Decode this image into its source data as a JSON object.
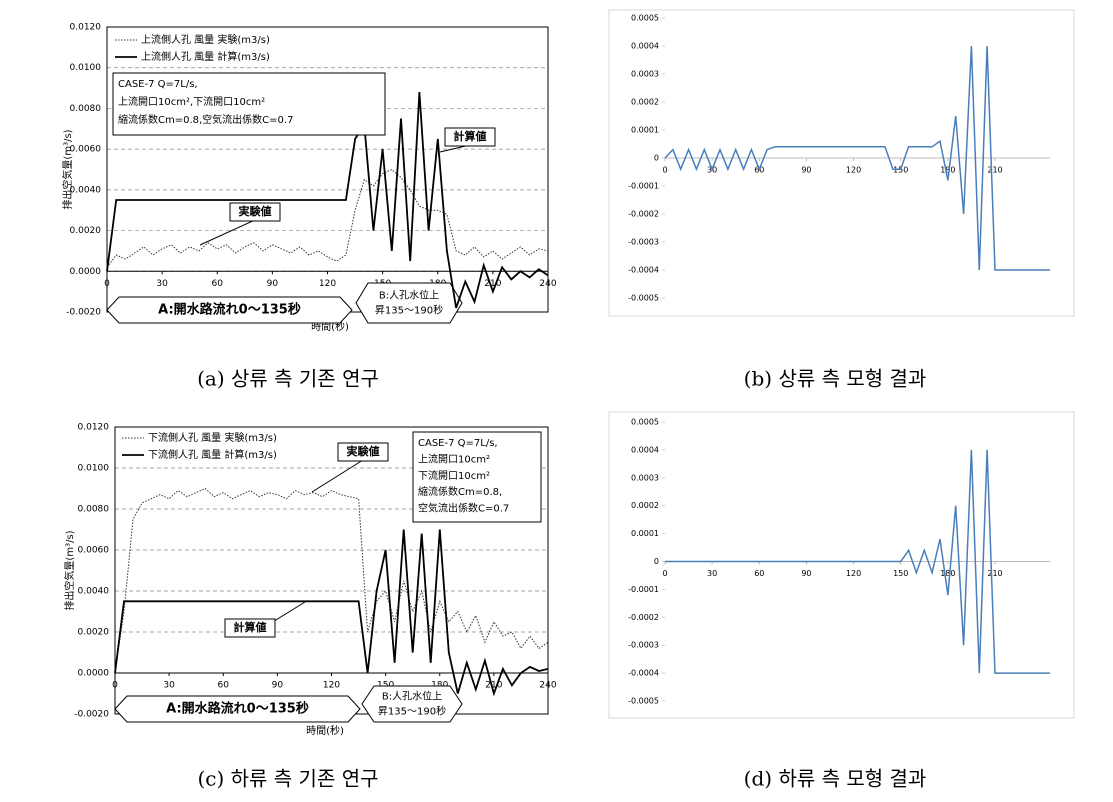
{
  "chart_data": [
    {
      "type": "line",
      "caption": "(a) 상류 측 기존 연구",
      "xlabel": "時間(秒)",
      "ylabel": "排出空気量(m³/s)",
      "style": "paper",
      "grid": true,
      "xlim": [
        0,
        240
      ],
      "xticks": [
        0,
        30,
        60,
        90,
        120,
        150,
        180,
        210,
        240
      ],
      "ylim": [
        -0.002,
        0.012
      ],
      "yticks": [
        {
          "value": -0.002,
          "label": "-0.0020"
        },
        {
          "value": 0,
          "label": "0.0000"
        },
        {
          "value": 0.002,
          "label": "0.0020"
        },
        {
          "value": 0.004,
          "label": "0.0040"
        },
        {
          "value": 0.006,
          "label": "0.0060"
        },
        {
          "value": 0.008,
          "label": "0.0080"
        },
        {
          "value": 0.01,
          "label": "0.0100"
        },
        {
          "value": 0.012,
          "label": "0.0120"
        }
      ],
      "annotation_box": [
        "CASE-7 Q=7L/s,",
        "上流開口10cm²,下流開口10cm²",
        "縮流係数Cm=0.8,空気流出係数C=0.7"
      ],
      "callouts": [
        "実験値",
        "計算値"
      ],
      "phases": [
        [
          "A:開水路流れ0～135秒"
        ],
        [
          "B:人孔水位上",
          "昇135～190秒"
        ]
      ],
      "x": [
        0,
        5,
        10,
        15,
        20,
        25,
        30,
        35,
        40,
        45,
        50,
        55,
        60,
        65,
        70,
        75,
        80,
        85,
        90,
        95,
        100,
        105,
        110,
        115,
        120,
        125,
        130,
        135,
        140,
        145,
        150,
        155,
        160,
        165,
        170,
        175,
        180,
        185,
        190,
        195,
        200,
        205,
        210,
        215,
        220,
        225,
        230,
        235,
        240
      ],
      "series": [
        {
          "name": "上流側人孔 風量 実験(m3/s)",
          "color": "#333333",
          "line_style": "dotted",
          "values": [
            0.0002,
            0.0008,
            0.0006,
            0.0009,
            0.0012,
            0.0008,
            0.0011,
            0.0013,
            0.0009,
            0.0012,
            0.001,
            0.0014,
            0.0011,
            0.0013,
            0.0009,
            0.0012,
            0.0014,
            0.001,
            0.0013,
            0.0011,
            0.0009,
            0.0012,
            0.0008,
            0.001,
            0.0007,
            0.0005,
            0.0008,
            0.003,
            0.0045,
            0.0042,
            0.0048,
            0.005,
            0.0046,
            0.004,
            0.0032,
            0.003,
            0.003,
            0.0028,
            0.001,
            0.0008,
            0.0012,
            0.0007,
            0.001,
            0.0006,
            0.0009,
            0.0012,
            0.0008,
            0.0011,
            0.001
          ]
        },
        {
          "name": "上流側人孔 風量 計算(m3/s)",
          "color": "#000000",
          "line_style": "solid",
          "values": [
            0,
            0.0035,
            0.0035,
            0.0035,
            0.0035,
            0.0035,
            0.0035,
            0.0035,
            0.0035,
            0.0035,
            0.0035,
            0.0035,
            0.0035,
            0.0035,
            0.0035,
            0.0035,
            0.0035,
            0.0035,
            0.0035,
            0.0035,
            0.0035,
            0.0035,
            0.0035,
            0.0035,
            0.0035,
            0.0035,
            0.0035,
            0.0065,
            0.0072,
            0.002,
            0.006,
            0.001,
            0.0075,
            0.0005,
            0.0088,
            0.002,
            0.0065,
            0.001,
            -0.0018,
            -0.0005,
            -0.0015,
            0.0003,
            -0.001,
            0.0002,
            -0.0004,
            0,
            -0.0003,
            0.0001,
            -0.0002
          ]
        }
      ]
    },
    {
      "type": "line",
      "caption": "(b) 상류 측 모형 결과",
      "style": "excel",
      "grid": false,
      "xlim": [
        0,
        245
      ],
      "xticks": [
        0,
        30,
        60,
        90,
        120,
        150,
        180,
        210
      ],
      "ylim": [
        -0.0005,
        0.0005
      ],
      "yticks": [
        -0.0005,
        -0.0004,
        -0.0003,
        -0.0002,
        -0.0001,
        0,
        0.0001,
        0.0002,
        0.0003,
        0.0004,
        0.0005
      ],
      "x": [
        0,
        5,
        10,
        15,
        20,
        25,
        30,
        35,
        40,
        45,
        50,
        55,
        60,
        65,
        70,
        75,
        80,
        85,
        90,
        95,
        100,
        105,
        110,
        115,
        120,
        125,
        130,
        135,
        140,
        145,
        150,
        155,
        160,
        165,
        170,
        175,
        180,
        185,
        190,
        195,
        200,
        205,
        210,
        215,
        220,
        225,
        230,
        235,
        240,
        245
      ],
      "series": [
        {
          "color": "#4a7ebb",
          "line_style": "solid",
          "values": [
            0,
            3e-05,
            -4e-05,
            3e-05,
            -4e-05,
            3e-05,
            -4e-05,
            3e-05,
            -4e-05,
            3e-05,
            -4e-05,
            3e-05,
            -4e-05,
            3e-05,
            4e-05,
            4e-05,
            4e-05,
            4e-05,
            4e-05,
            4e-05,
            4e-05,
            4e-05,
            4e-05,
            4e-05,
            4e-05,
            4e-05,
            4e-05,
            4e-05,
            4e-05,
            -4e-05,
            -4e-05,
            4e-05,
            4e-05,
            4e-05,
            4e-05,
            6e-05,
            -8e-05,
            0.00015,
            -0.0002,
            0.0004,
            -0.0004,
            0.0004,
            -0.0004,
            -0.0004,
            -0.0004,
            -0.0004,
            -0.0004,
            -0.0004,
            -0.0004,
            -0.0004
          ]
        }
      ]
    },
    {
      "type": "line",
      "caption": "(c) 하류 측 기존 연구",
      "xlabel": "時間(秒)",
      "ylabel": "排出空気量(m³/s)",
      "style": "paper",
      "grid": true,
      "xlim": [
        0,
        240
      ],
      "xticks": [
        0,
        30,
        60,
        90,
        120,
        150,
        180,
        210,
        240
      ],
      "ylim": [
        -0.002,
        0.012
      ],
      "yticks": [
        {
          "value": -0.002,
          "label": "-0.0020"
        },
        {
          "value": 0,
          "label": "0.0000"
        },
        {
          "value": 0.002,
          "label": "0.0020"
        },
        {
          "value": 0.004,
          "label": "0.0040"
        },
        {
          "value": 0.006,
          "label": "0.0060"
        },
        {
          "value": 0.008,
          "label": "0.0080"
        },
        {
          "value": 0.01,
          "label": "0.0100"
        },
        {
          "value": 0.012,
          "label": "0.0120"
        }
      ],
      "annotation_box": [
        "CASE-7 Q=7L/s,",
        "上流開口10cm²",
        "下流開口10cm²",
        "縮流係数Cm=0.8,",
        "空気流出係数C=0.7"
      ],
      "callouts": [
        "実験値",
        "計算値"
      ],
      "phases": [
        [
          "A:開水路流れ0～135秒"
        ],
        [
          "B:人孔水位上",
          "昇135～190秒"
        ]
      ],
      "x": [
        0,
        5,
        10,
        15,
        20,
        25,
        30,
        35,
        40,
        45,
        50,
        55,
        60,
        65,
        70,
        75,
        80,
        85,
        90,
        95,
        100,
        105,
        110,
        115,
        120,
        125,
        130,
        135,
        140,
        145,
        150,
        155,
        160,
        165,
        170,
        175,
        180,
        185,
        190,
        195,
        200,
        205,
        210,
        215,
        220,
        225,
        230,
        235,
        240
      ],
      "series": [
        {
          "name": "下流側人孔 風量 実験(m3/s)",
          "color": "#333333",
          "line_style": "dotted",
          "values": [
            0,
            0.003,
            0.0075,
            0.0083,
            0.0085,
            0.0087,
            0.0085,
            0.0089,
            0.0086,
            0.0088,
            0.009,
            0.0086,
            0.0088,
            0.0085,
            0.0087,
            0.0089,
            0.0086,
            0.0088,
            0.0087,
            0.0085,
            0.0089,
            0.0087,
            0.0088,
            0.0086,
            0.0089,
            0.0087,
            0.0086,
            0.0085,
            0.002,
            0.0035,
            0.004,
            0.0025,
            0.0045,
            0.003,
            0.004,
            0.002,
            0.0035,
            0.0025,
            0.003,
            0.002,
            0.0028,
            0.0015,
            0.0025,
            0.0018,
            0.002,
            0.0012,
            0.0018,
            0.0012,
            0.0015
          ]
        },
        {
          "name": "下流側人孔 風量 計算(m3/s)",
          "color": "#000000",
          "line_style": "solid",
          "values": [
            0,
            0.0035,
            0.0035,
            0.0035,
            0.0035,
            0.0035,
            0.0035,
            0.0035,
            0.0035,
            0.0035,
            0.0035,
            0.0035,
            0.0035,
            0.0035,
            0.0035,
            0.0035,
            0.0035,
            0.0035,
            0.0035,
            0.0035,
            0.0035,
            0.0035,
            0.0035,
            0.0035,
            0.0035,
            0.0035,
            0.0035,
            0.0035,
            0,
            0.004,
            0.006,
            0.0005,
            0.007,
            0.001,
            0.0068,
            0.0005,
            0.007,
            0.001,
            -0.001,
            0.0005,
            -0.0008,
            0.0006,
            -0.001,
            0.0002,
            -0.0006,
            0,
            0.0003,
            0.0001,
            0.0002
          ]
        }
      ]
    },
    {
      "type": "line",
      "caption": "(d) 하류 측 모형 결과",
      "style": "excel",
      "grid": false,
      "xlim": [
        0,
        245
      ],
      "xticks": [
        0,
        30,
        60,
        90,
        120,
        150,
        180,
        210
      ],
      "ylim": [
        -0.0005,
        0.0005
      ],
      "yticks": [
        -0.0005,
        -0.0004,
        -0.0003,
        -0.0002,
        -0.0001,
        0,
        0.0001,
        0.0002,
        0.0003,
        0.0004,
        0.0005
      ],
      "x": [
        0,
        5,
        10,
        15,
        20,
        25,
        30,
        35,
        40,
        45,
        50,
        55,
        60,
        65,
        70,
        75,
        80,
        85,
        90,
        95,
        100,
        105,
        110,
        115,
        120,
        125,
        130,
        135,
        140,
        145,
        150,
        155,
        160,
        165,
        170,
        175,
        180,
        185,
        190,
        195,
        200,
        205,
        210,
        215,
        220,
        225,
        230,
        235,
        240,
        245
      ],
      "series": [
        {
          "color": "#4a7ebb",
          "line_style": "solid",
          "values": [
            0,
            0,
            0,
            0,
            0,
            0,
            0,
            0,
            0,
            0,
            0,
            0,
            0,
            0,
            0,
            0,
            0,
            0,
            0,
            0,
            0,
            0,
            0,
            0,
            0,
            0,
            0,
            0,
            0,
            0,
            0,
            4e-05,
            -4e-05,
            4e-05,
            -4e-05,
            8e-05,
            -0.00012,
            0.0002,
            -0.0003,
            0.0004,
            -0.0004,
            0.0004,
            -0.0004,
            -0.0004,
            -0.0004,
            -0.0004,
            -0.0004,
            -0.0004,
            -0.0004,
            -0.0004
          ]
        }
      ]
    }
  ]
}
